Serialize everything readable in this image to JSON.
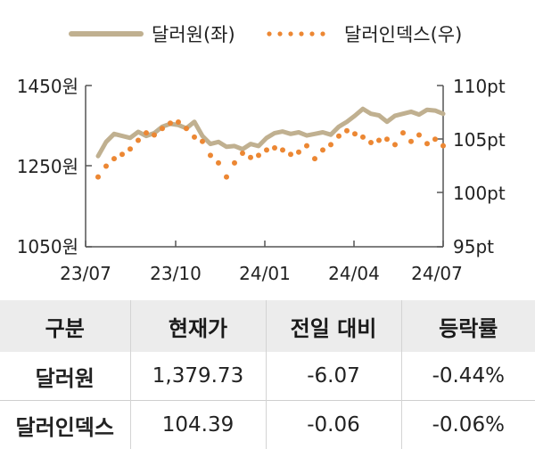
{
  "chart_data": {
    "type": "line",
    "x_ticks": [
      "23/07",
      "23/10",
      "24/01",
      "24/04",
      "24/07"
    ],
    "y_left": {
      "ticks": [
        "1450원",
        "1250원",
        "1050원"
      ],
      "range": [
        1050,
        1450
      ]
    },
    "y_right": {
      "ticks": [
        "110pt",
        "105pt",
        "100pt",
        "95pt"
      ],
      "range": [
        95,
        110
      ]
    },
    "grid": false,
    "legend_position": "top",
    "colors": {
      "usdkrw": "#c0b090",
      "dxy": "#ec8733"
    },
    "series": [
      {
        "name": "달러원(좌)",
        "axis": "left",
        "style": "solid",
        "values": [
          1275,
          1310,
          1330,
          1325,
          1320,
          1335,
          1325,
          1332,
          1348,
          1355,
          1352,
          1344,
          1360,
          1325,
          1305,
          1310,
          1298,
          1300,
          1292,
          1305,
          1300,
          1320,
          1332,
          1336,
          1330,
          1334,
          1326,
          1330,
          1334,
          1328,
          1348,
          1360,
          1375,
          1392,
          1380,
          1376,
          1360,
          1375,
          1380,
          1385,
          1378,
          1390,
          1388,
          1380
        ]
      },
      {
        "name": "달러인덱스(우)",
        "axis": "right",
        "style": "dots",
        "values": [
          101.5,
          102.5,
          103.2,
          103.6,
          104.1,
          104.9,
          105.6,
          105.4,
          106.0,
          106.5,
          106.6,
          106.0,
          105.2,
          104.8,
          103.5,
          102.8,
          101.5,
          102.8,
          103.7,
          103.3,
          103.5,
          104.0,
          104.2,
          104.0,
          103.6,
          103.8,
          104.4,
          103.2,
          104.0,
          104.5,
          105.3,
          105.8,
          105.5,
          105.2,
          104.7,
          104.9,
          105.0,
          104.5,
          105.6,
          104.8,
          105.4,
          104.6,
          105.0,
          104.4
        ]
      }
    ]
  },
  "table": {
    "headers": [
      "구분",
      "현재가",
      "전일 대비",
      "등락률"
    ],
    "rows": [
      {
        "name": "달러원",
        "price": "1,379.73",
        "change": "-6.07",
        "rate": "-0.44%"
      },
      {
        "name": "달러인덱스",
        "price": "104.39",
        "change": "-0.06",
        "rate": "-0.06%"
      }
    ]
  }
}
